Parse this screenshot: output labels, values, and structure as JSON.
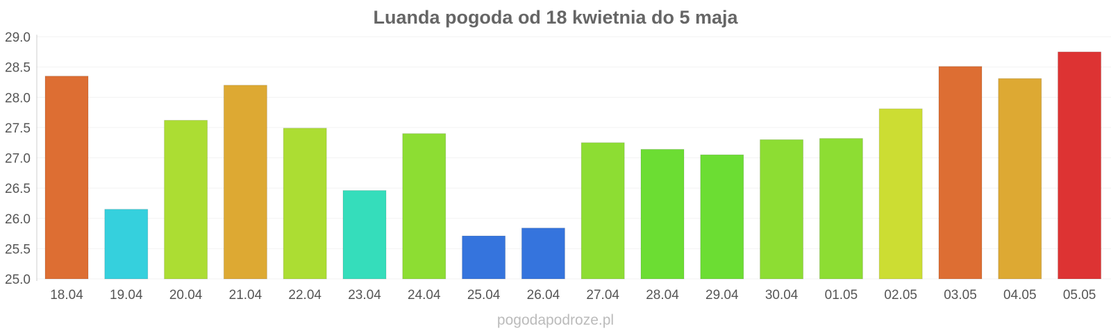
{
  "chart_data": {
    "type": "bar",
    "title": "Luanda pogoda od 18 kwietnia do 5 maja",
    "xlabel": "",
    "ylabel": "",
    "ylim": [
      25.0,
      29.0
    ],
    "yticks": [
      "25.0",
      "25.5",
      "26.0",
      "26.5",
      "27.0",
      "27.5",
      "28.0",
      "28.5",
      "29.0"
    ],
    "grid": true,
    "legend": "none",
    "categories": [
      "18.04",
      "19.04",
      "20.04",
      "21.04",
      "22.04",
      "23.04",
      "24.04",
      "25.04",
      "26.04",
      "27.04",
      "28.04",
      "29.04",
      "30.04",
      "01.05",
      "02.05",
      "03.05",
      "04.05",
      "05.05"
    ],
    "values": [
      28.35,
      26.15,
      27.62,
      28.2,
      27.49,
      26.46,
      27.4,
      25.71,
      25.84,
      27.25,
      27.14,
      27.05,
      27.3,
      27.32,
      27.81,
      28.51,
      28.31,
      28.75
    ],
    "colors": [
      "#dd6e33",
      "#35d0dd",
      "#acdd33",
      "#dda933",
      "#acdd33",
      "#35ddbb",
      "#8ddd33",
      "#3574dd",
      "#3574dd",
      "#8ddd33",
      "#6cdd33",
      "#6cdd33",
      "#8ddd33",
      "#8ddd33",
      "#ccdd33",
      "#dd6e33",
      "#dda933",
      "#dd3333"
    ]
  },
  "watermark": "pogodapodroze.pl"
}
